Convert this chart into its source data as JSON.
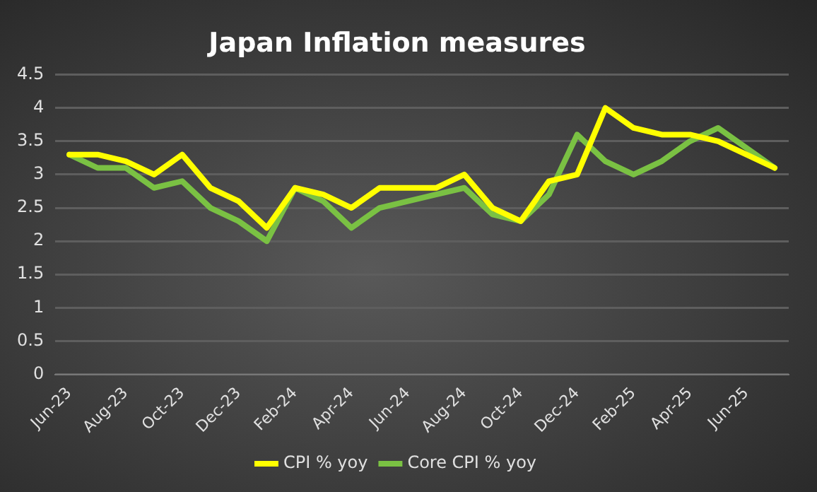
{
  "chart_data": {
    "type": "line",
    "title": "Japan Inflation measures",
    "categories": [
      "Jun-23",
      null,
      "Aug-23",
      null,
      "Oct-23",
      null,
      "Dec-23",
      null,
      "Feb-24",
      null,
      "Apr-24",
      null,
      "Jun-24",
      null,
      "Aug-24",
      null,
      "Oct-24",
      null,
      "Dec-24",
      null,
      "Feb-25",
      null,
      "Apr-25",
      null,
      "Jun-25",
      null
    ],
    "series": [
      {
        "name": "CPI % yoy",
        "color": "#ffff00",
        "values": [
          3.3,
          3.3,
          3.2,
          3.0,
          3.3,
          2.8,
          2.6,
          2.2,
          2.8,
          2.7,
          2.5,
          2.8,
          2.8,
          2.8,
          3.0,
          2.5,
          2.3,
          2.9,
          3.0,
          4.0,
          3.7,
          3.6,
          3.6,
          3.5,
          3.3,
          3.1
        ]
      },
      {
        "name": "Core CPI % yoy",
        "color": "#7ac143",
        "values": [
          3.3,
          3.1,
          3.1,
          2.8,
          2.9,
          2.5,
          2.3,
          2.0,
          2.8,
          2.6,
          2.2,
          2.5,
          2.6,
          2.7,
          2.8,
          2.4,
          2.3,
          2.7,
          3.6,
          3.2,
          3.0,
          3.2,
          3.5,
          3.7,
          3.4,
          3.1
        ]
      }
    ],
    "ylim": [
      0,
      4.5
    ],
    "yticks": [
      0,
      0.5,
      1,
      1.5,
      2,
      2.5,
      3,
      3.5,
      4,
      4.5
    ],
    "grid": "y",
    "legend": "bottom",
    "marker": "none",
    "line_style": "solid"
  }
}
